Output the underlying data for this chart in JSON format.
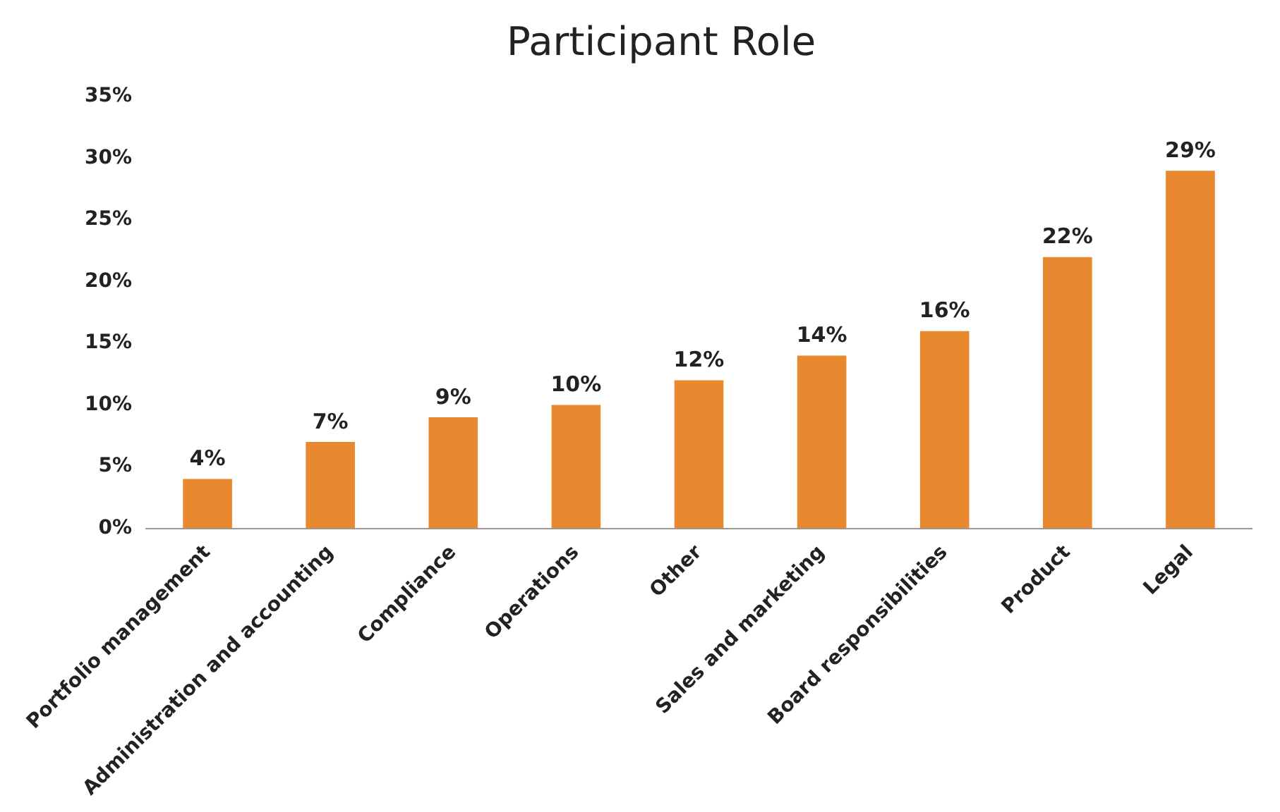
{
  "chart_data": {
    "type": "bar",
    "title": "Participant Role",
    "categories": [
      "Portfolio management",
      "Administration and accounting",
      "Compliance",
      "Operations",
      "Other",
      "Sales and marketing",
      "Board responsibilities",
      "Product",
      "Legal"
    ],
    "values": [
      4,
      7,
      9,
      10,
      12,
      14,
      16,
      22,
      29
    ],
    "value_labels": [
      "4%",
      "7%",
      "9%",
      "10%",
      "12%",
      "14%",
      "16%",
      "22%",
      "29%"
    ],
    "color": "#e8892f",
    "ylim": [
      0,
      35
    ],
    "yticks": [
      {
        "value": 0,
        "label": "0%"
      },
      {
        "value": 5,
        "label": "5%"
      },
      {
        "value": 10,
        "label": "10%"
      },
      {
        "value": 15,
        "label": "15%"
      },
      {
        "value": 20,
        "label": "20%"
      },
      {
        "value": 25,
        "label": "25%"
      },
      {
        "value": 30,
        "label": "30%"
      },
      {
        "value": 35,
        "label": "35%"
      }
    ],
    "grid": false,
    "legend": false
  }
}
